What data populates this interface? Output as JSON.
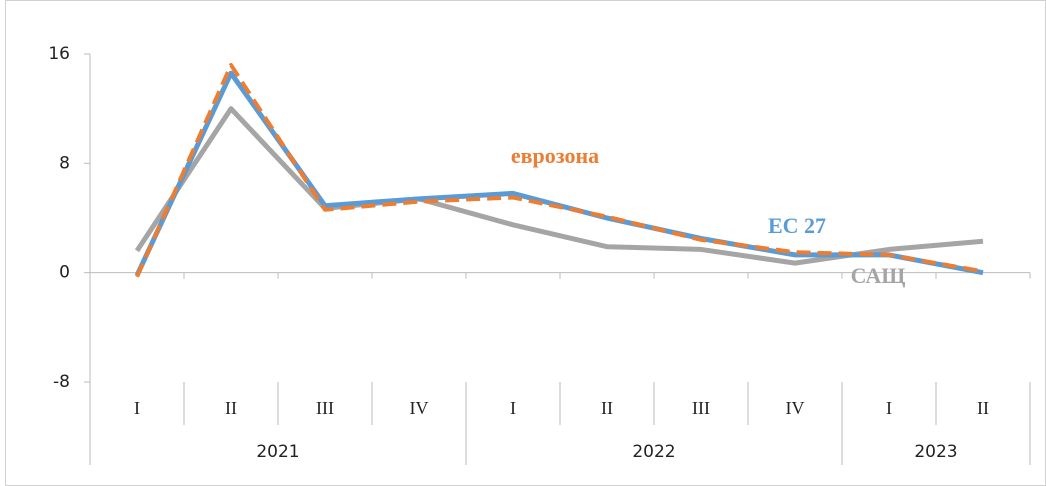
{
  "chart_data": {
    "type": "line",
    "groups": [
      {
        "label": "2021",
        "categories": [
          "I",
          "II",
          "III",
          "IV"
        ]
      },
      {
        "label": "2022",
        "categories": [
          "I",
          "II",
          "III",
          "IV"
        ]
      },
      {
        "label": "2023",
        "categories": [
          "I",
          "II"
        ]
      }
    ],
    "series": [
      {
        "name": "ЕС 27",
        "color": "#5b9bd5",
        "dash": false,
        "values": [
          -0.2,
          14.6,
          4.9,
          5.4,
          5.8,
          4.0,
          2.5,
          1.3,
          1.3,
          0.0
        ]
      },
      {
        "name": "еврозона",
        "color": "#ed7d31",
        "dash": true,
        "values": [
          -0.3,
          15.2,
          4.6,
          5.2,
          5.5,
          4.1,
          2.4,
          1.5,
          1.3,
          0.1
        ]
      },
      {
        "name": "САЩ",
        "color": "#a5a5a5",
        "dash": false,
        "values": [
          1.6,
          12.0,
          4.7,
          5.4,
          3.5,
          1.9,
          1.7,
          0.7,
          1.7,
          2.3
        ]
      }
    ],
    "ylim": [
      -8,
      16
    ],
    "yticks": [
      -8,
      0,
      8,
      16
    ]
  }
}
